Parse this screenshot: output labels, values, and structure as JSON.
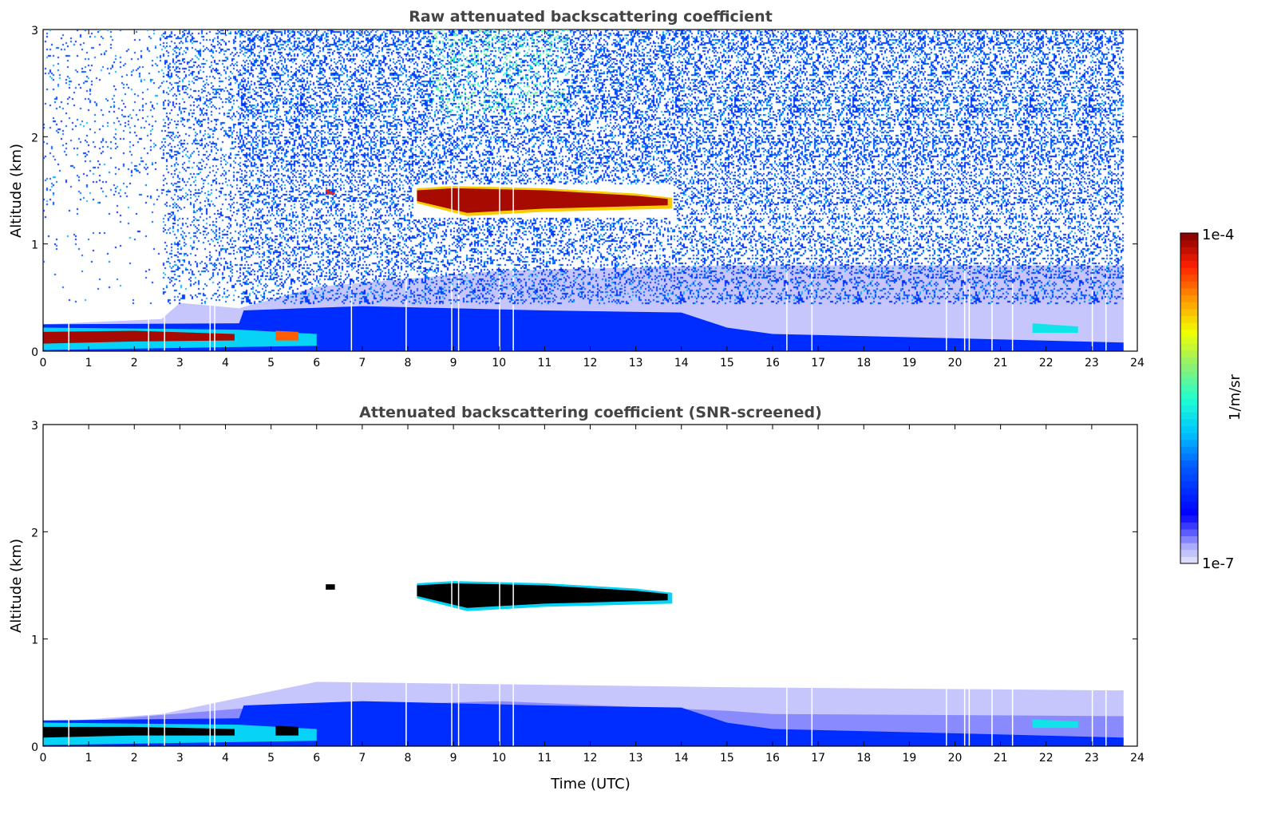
{
  "chart_data": [
    {
      "type": "heatmap",
      "title": "Raw attenuated backscattering coefficient",
      "xlabel": "",
      "ylabel": "Altitude (km)",
      "xlim": [
        0,
        24
      ],
      "ylim": [
        0,
        3
      ],
      "xticks": [
        "0",
        "1",
        "2",
        "3",
        "4",
        "5",
        "6",
        "7",
        "8",
        "9",
        "10",
        "11",
        "12",
        "13",
        "14",
        "15",
        "16",
        "17",
        "18",
        "19",
        "20",
        "21",
        "22",
        "23",
        "24"
      ],
      "yticks": [
        "0",
        "1",
        "2",
        "3"
      ],
      "data_end_time": 23.7,
      "noise": true,
      "features": [
        {
          "name": "haze-layer",
          "level": 0.03,
          "top": [
            [
              0,
              0.25
            ],
            [
              2.6,
              0.3
            ],
            [
              3,
              0.45
            ],
            [
              4.3,
              0.4
            ],
            [
              6,
              0.6
            ],
            [
              10,
              0.75
            ],
            [
              15,
              0.8
            ],
            [
              23.7,
              0.8
            ]
          ],
          "bottom": [
            [
              0,
              0
            ],
            [
              23.7,
              0
            ]
          ]
        },
        {
          "name": "boundary-layer",
          "level": 0.22,
          "top": [
            [
              0,
              0.25
            ],
            [
              4.3,
              0.26
            ],
            [
              4.4,
              0.38
            ],
            [
              7,
              0.42
            ],
            [
              11,
              0.38
            ],
            [
              14,
              0.36
            ],
            [
              15,
              0.22
            ],
            [
              16,
              0.16
            ],
            [
              20,
              0.12
            ],
            [
              23.7,
              0.08
            ]
          ],
          "bottom": [
            [
              0,
              0
            ],
            [
              23.7,
              0
            ]
          ]
        },
        {
          "name": "aerosol-fringe",
          "level": 0.42,
          "top": [
            [
              0,
              0.22
            ],
            [
              4.3,
              0.2
            ],
            [
              6,
              0.16
            ]
          ],
          "bottom": [
            [
              0,
              0.01
            ],
            [
              6,
              0.05
            ]
          ]
        },
        {
          "name": "aerosol-core",
          "level": 0.97,
          "top": [
            [
              0,
              0.18
            ],
            [
              2,
              0.19
            ],
            [
              4.2,
              0.16
            ]
          ],
          "bottom": [
            [
              0,
              0.07
            ],
            [
              2,
              0.09
            ],
            [
              4.2,
              0.1
            ]
          ]
        },
        {
          "name": "aerosol-patches",
          "level": 0.85,
          "top": [
            [
              5.1,
              0.19
            ],
            [
              5.6,
              0.18
            ]
          ],
          "bottom": [
            [
              5.1,
              0.1
            ],
            [
              5.6,
              0.1
            ]
          ]
        },
        {
          "name": "cloud-edge",
          "level": 0.75,
          "top": [
            [
              8.2,
              1.52
            ],
            [
              9,
              1.54
            ],
            [
              11,
              1.52
            ],
            [
              13,
              1.47
            ],
            [
              13.8,
              1.43
            ]
          ],
          "bottom": [
            [
              8.2,
              1.38
            ],
            [
              9.3,
              1.26
            ],
            [
              11,
              1.3
            ],
            [
              13.8,
              1.33
            ]
          ]
        },
        {
          "name": "cloud-layer",
          "level": 0.97,
          "top": [
            [
              8.2,
              1.5
            ],
            [
              9,
              1.52
            ],
            [
              11,
              1.5
            ],
            [
              13,
              1.45
            ],
            [
              13.7,
              1.42
            ]
          ],
          "bottom": [
            [
              8.2,
              1.4
            ],
            [
              9.3,
              1.29
            ],
            [
              11,
              1.33
            ],
            [
              13.7,
              1.36
            ]
          ]
        },
        {
          "name": "small-cloud",
          "level": 0.9,
          "top": [
            [
              6.2,
              1.51
            ],
            [
              6.4,
              1.51
            ]
          ],
          "bottom": [
            [
              6.2,
              1.46
            ],
            [
              6.4,
              1.46
            ]
          ]
        },
        {
          "name": "low-cloud-patches",
          "level": 0.45,
          "top": [
            [
              21.7,
              0.26
            ],
            [
              22.7,
              0.23
            ]
          ],
          "bottom": [
            [
              21.7,
              0.17
            ],
            [
              22.7,
              0.17
            ]
          ]
        }
      ]
    },
    {
      "type": "heatmap",
      "title": "Attenuated backscattering coefficient (SNR-screened)",
      "xlabel": "Time (UTC)",
      "ylabel": "Altitude (km)",
      "xlim": [
        0,
        24
      ],
      "ylim": [
        0,
        3
      ],
      "xticks": [
        "0",
        "1",
        "2",
        "3",
        "4",
        "5",
        "6",
        "7",
        "8",
        "9",
        "10",
        "11",
        "12",
        "13",
        "14",
        "15",
        "16",
        "17",
        "18",
        "19",
        "20",
        "21",
        "22",
        "23",
        "24"
      ],
      "yticks": [
        "0",
        "1",
        "2",
        "3"
      ],
      "data_end_time": 23.7,
      "noise": false,
      "features": [
        {
          "name": "haze-layer",
          "level": 0.03,
          "top": [
            [
              0,
              0.22
            ],
            [
              2.6,
              0.3
            ],
            [
              4.3,
              0.45
            ],
            [
              6,
              0.6
            ],
            [
              15,
              0.55
            ],
            [
              23.7,
              0.52
            ]
          ],
          "bottom": [
            [
              0,
              0
            ],
            [
              23.7,
              0
            ]
          ]
        },
        {
          "name": "haze-dense",
          "level": 0.07,
          "top": [
            [
              0,
              0.2
            ],
            [
              4.3,
              0.35
            ],
            [
              10,
              0.42
            ],
            [
              15,
              0.33
            ],
            [
              16,
              0.3
            ],
            [
              23.7,
              0.28
            ]
          ],
          "bottom": [
            [
              0,
              0
            ],
            [
              23.7,
              0
            ]
          ]
        },
        {
          "name": "boundary-layer",
          "level": 0.22,
          "top": [
            [
              0,
              0.24
            ],
            [
              4.3,
              0.26
            ],
            [
              4.4,
              0.38
            ],
            [
              7,
              0.42
            ],
            [
              11,
              0.38
            ],
            [
              14,
              0.36
            ],
            [
              15,
              0.22
            ],
            [
              16,
              0.16
            ],
            [
              20,
              0.12
            ],
            [
              23.7,
              0.08
            ]
          ],
          "bottom": [
            [
              0,
              0
            ],
            [
              23.7,
              0
            ]
          ]
        },
        {
          "name": "aerosol-fringe",
          "level": 0.42,
          "top": [
            [
              0,
              0.22
            ],
            [
              4.3,
              0.2
            ],
            [
              6,
              0.16
            ]
          ],
          "bottom": [
            [
              0,
              0.01
            ],
            [
              6,
              0.05
            ]
          ]
        },
        {
          "name": "aerosol-saturated",
          "level": -1,
          "top": [
            [
              0,
              0.18
            ],
            [
              2,
              0.18
            ],
            [
              4.2,
              0.16
            ]
          ],
          "bottom": [
            [
              0,
              0.08
            ],
            [
              2,
              0.1
            ],
            [
              4.2,
              0.1
            ]
          ]
        },
        {
          "name": "aerosol-patches",
          "level": -1,
          "top": [
            [
              5.1,
              0.19
            ],
            [
              5.6,
              0.18
            ]
          ],
          "bottom": [
            [
              5.1,
              0.1
            ],
            [
              5.6,
              0.1
            ]
          ]
        },
        {
          "name": "cloud-edge",
          "level": 0.42,
          "top": [
            [
              8.2,
              1.52
            ],
            [
              9,
              1.54
            ],
            [
              11,
              1.52
            ],
            [
              13,
              1.47
            ],
            [
              13.8,
              1.43
            ]
          ],
          "bottom": [
            [
              8.2,
              1.38
            ],
            [
              9.3,
              1.26
            ],
            [
              11,
              1.3
            ],
            [
              13.8,
              1.33
            ]
          ]
        },
        {
          "name": "cloud-saturated",
          "level": -1,
          "top": [
            [
              8.2,
              1.5
            ],
            [
              9,
              1.52
            ],
            [
              11,
              1.5
            ],
            [
              13,
              1.45
            ],
            [
              13.7,
              1.42
            ]
          ],
          "bottom": [
            [
              8.2,
              1.4
            ],
            [
              9.3,
              1.29
            ],
            [
              11,
              1.33
            ],
            [
              13.7,
              1.36
            ]
          ]
        },
        {
          "name": "small-cloud",
          "level": -1,
          "top": [
            [
              6.2,
              1.51
            ],
            [
              6.4,
              1.51
            ]
          ],
          "bottom": [
            [
              6.2,
              1.46
            ],
            [
              6.4,
              1.46
            ]
          ]
        },
        {
          "name": "low-cloud-patches",
          "level": 0.45,
          "top": [
            [
              21.7,
              0.25
            ],
            [
              22.7,
              0.23
            ]
          ],
          "bottom": [
            [
              21.7,
              0.17
            ],
            [
              22.7,
              0.17
            ]
          ]
        }
      ]
    }
  ],
  "colorbar": {
    "max_label": "1e-4",
    "min_label": "1e-7",
    "label": "1/m/sr",
    "saturated_color": "#000000",
    "stops": [
      [
        0.0,
        "#e6e6fa"
      ],
      [
        0.05,
        "#b0b0ff"
      ],
      [
        0.1,
        "#5050ff"
      ],
      [
        0.15,
        "#0000ff"
      ],
      [
        0.3,
        "#0060ff"
      ],
      [
        0.4,
        "#00c8ff"
      ],
      [
        0.5,
        "#20ffd0"
      ],
      [
        0.6,
        "#90f070"
      ],
      [
        0.7,
        "#f0ff00"
      ],
      [
        0.8,
        "#ff9900"
      ],
      [
        0.9,
        "#ff2000"
      ],
      [
        1.0,
        "#800000"
      ]
    ]
  }
}
